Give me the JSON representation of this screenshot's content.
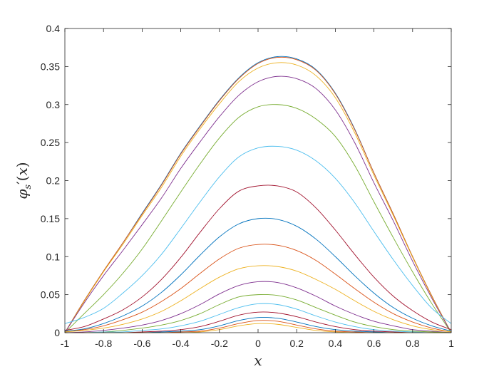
{
  "chart_data": {
    "type": "line",
    "title": "",
    "xlabel": "x",
    "ylabel": {
      "symbol": "φ",
      "subscript": "s",
      "prime": "′",
      "open": "(",
      "arg": "x",
      "close": ")"
    },
    "xlim": [
      -1,
      1
    ],
    "ylim": [
      0,
      0.4
    ],
    "grid": false,
    "box": true,
    "xticks": [
      -1,
      -0.8,
      -0.6,
      -0.4,
      -0.2,
      0,
      0.2,
      0.4,
      0.6,
      0.8,
      1
    ],
    "xtick_labels": [
      "-1",
      "-0.8",
      "-0.6",
      "-0.4",
      "-0.2",
      "0",
      "0.2",
      "0.4",
      "0.6",
      "0.8",
      "1"
    ],
    "yticks": [
      0,
      0.05,
      0.1,
      0.15,
      0.2,
      0.25,
      0.3,
      0.35,
      0.4
    ],
    "ytick_labels": [
      "0",
      "0.05",
      "0.1",
      "0.15",
      "0.2",
      "0.25",
      "0.3",
      "0.35",
      "0.4"
    ],
    "x": [
      -1.0,
      -0.9,
      -0.8,
      -0.7,
      -0.6,
      -0.5,
      -0.4,
      -0.3,
      -0.2,
      -0.1,
      0.0,
      0.1,
      0.2,
      0.3,
      0.4,
      0.5,
      0.6,
      0.7,
      0.8,
      0.9,
      1.0
    ],
    "series": [
      {
        "color": "#0072BD",
        "values": [
          0.0,
          0.042,
          0.081,
          0.118,
          0.157,
          0.195,
          0.236,
          0.272,
          0.306,
          0.335,
          0.355,
          0.363,
          0.36,
          0.346,
          0.315,
          0.268,
          0.21,
          0.156,
          0.1,
          0.048,
          0.0
        ]
      },
      {
        "color": "#D95319",
        "values": [
          0.0,
          0.042,
          0.081,
          0.118,
          0.156,
          0.194,
          0.235,
          0.271,
          0.305,
          0.334,
          0.354,
          0.362,
          0.359,
          0.345,
          0.314,
          0.267,
          0.21,
          0.156,
          0.1,
          0.048,
          0.0
        ]
      },
      {
        "color": "#EDB120",
        "values": [
          0.0,
          0.041,
          0.08,
          0.116,
          0.154,
          0.191,
          0.232,
          0.268,
          0.301,
          0.33,
          0.348,
          0.355,
          0.352,
          0.338,
          0.309,
          0.263,
          0.207,
          0.154,
          0.099,
          0.047,
          0.0
        ]
      },
      {
        "color": "#7E2F8E",
        "values": [
          0.0,
          0.039,
          0.075,
          0.108,
          0.142,
          0.177,
          0.216,
          0.251,
          0.284,
          0.312,
          0.33,
          0.337,
          0.334,
          0.321,
          0.293,
          0.25,
          0.197,
          0.147,
          0.094,
          0.045,
          0.0
        ]
      },
      {
        "color": "#77AC30",
        "values": [
          0.0,
          0.025,
          0.05,
          0.078,
          0.11,
          0.147,
          0.185,
          0.222,
          0.256,
          0.283,
          0.297,
          0.3,
          0.295,
          0.281,
          0.258,
          0.22,
          0.172,
          0.125,
          0.08,
          0.038,
          0.0
        ]
      },
      {
        "color": "#4DBEEE",
        "values": [
          0.012,
          0.02,
          0.032,
          0.052,
          0.075,
          0.103,
          0.137,
          0.172,
          0.205,
          0.231,
          0.243,
          0.245,
          0.24,
          0.226,
          0.203,
          0.171,
          0.133,
          0.096,
          0.062,
          0.032,
          0.012
        ]
      },
      {
        "color": "#A2142F",
        "values": [
          0.003,
          0.008,
          0.018,
          0.03,
          0.047,
          0.07,
          0.099,
          0.132,
          0.163,
          0.186,
          0.193,
          0.193,
          0.185,
          0.164,
          0.135,
          0.103,
          0.073,
          0.048,
          0.029,
          0.014,
          0.004
        ]
      },
      {
        "color": "#0072BD",
        "values": [
          0.002,
          0.005,
          0.012,
          0.022,
          0.035,
          0.053,
          0.076,
          0.102,
          0.126,
          0.143,
          0.15,
          0.149,
          0.14,
          0.123,
          0.1,
          0.075,
          0.052,
          0.033,
          0.019,
          0.009,
          0.002
        ]
      },
      {
        "color": "#D95319",
        "values": [
          0.001,
          0.004,
          0.009,
          0.017,
          0.027,
          0.041,
          0.058,
          0.078,
          0.097,
          0.111,
          0.116,
          0.115,
          0.108,
          0.095,
          0.077,
          0.058,
          0.04,
          0.025,
          0.014,
          0.006,
          0.001
        ]
      },
      {
        "color": "#EDB120",
        "values": [
          0.001,
          0.003,
          0.006,
          0.011,
          0.018,
          0.028,
          0.042,
          0.058,
          0.073,
          0.084,
          0.088,
          0.087,
          0.081,
          0.07,
          0.057,
          0.042,
          0.028,
          0.017,
          0.009,
          0.004,
          0.001
        ]
      },
      {
        "color": "#7E2F8E",
        "values": [
          0.0,
          0.001,
          0.003,
          0.006,
          0.01,
          0.016,
          0.025,
          0.037,
          0.051,
          0.062,
          0.067,
          0.066,
          0.059,
          0.048,
          0.035,
          0.024,
          0.015,
          0.009,
          0.004,
          0.002,
          0.0
        ]
      },
      {
        "color": "#77AC30",
        "values": [
          0.0,
          0.0,
          0.001,
          0.003,
          0.006,
          0.01,
          0.016,
          0.025,
          0.037,
          0.047,
          0.05,
          0.049,
          0.043,
          0.033,
          0.023,
          0.014,
          0.008,
          0.004,
          0.002,
          0.001,
          0.0
        ]
      },
      {
        "color": "#4DBEEE",
        "values": [
          0.0,
          0.0,
          0.001,
          0.001,
          0.003,
          0.005,
          0.009,
          0.015,
          0.024,
          0.033,
          0.038,
          0.037,
          0.031,
          0.022,
          0.014,
          0.008,
          0.004,
          0.002,
          0.001,
          0.0,
          0.0
        ]
      },
      {
        "color": "#A2142F",
        "values": [
          0.0,
          0.0,
          0.0,
          0.0,
          0.001,
          0.002,
          0.004,
          0.008,
          0.015,
          0.023,
          0.027,
          0.026,
          0.021,
          0.014,
          0.008,
          0.004,
          0.002,
          0.001,
          0.0,
          0.0,
          0.0
        ]
      },
      {
        "color": "#0072BD",
        "values": [
          0.0,
          0.0,
          0.0,
          0.0,
          0.0,
          0.001,
          0.002,
          0.004,
          0.009,
          0.016,
          0.02,
          0.019,
          0.014,
          0.008,
          0.004,
          0.002,
          0.001,
          0.0,
          0.0,
          0.0,
          0.0
        ]
      },
      {
        "color": "#D95319",
        "values": [
          0.0,
          0.0,
          0.0,
          0.0,
          0.0,
          0.0,
          0.001,
          0.002,
          0.006,
          0.012,
          0.016,
          0.015,
          0.01,
          0.005,
          0.002,
          0.001,
          0.0,
          0.0,
          0.0,
          0.0,
          0.0
        ]
      },
      {
        "color": "#EDB120",
        "values": [
          0.0,
          0.0,
          0.0,
          0.0,
          0.0,
          0.0,
          0.0,
          0.001,
          0.004,
          0.009,
          0.012,
          0.011,
          0.007,
          0.003,
          0.001,
          0.0,
          0.0,
          0.0,
          0.0,
          0.0,
          0.0
        ]
      }
    ]
  }
}
